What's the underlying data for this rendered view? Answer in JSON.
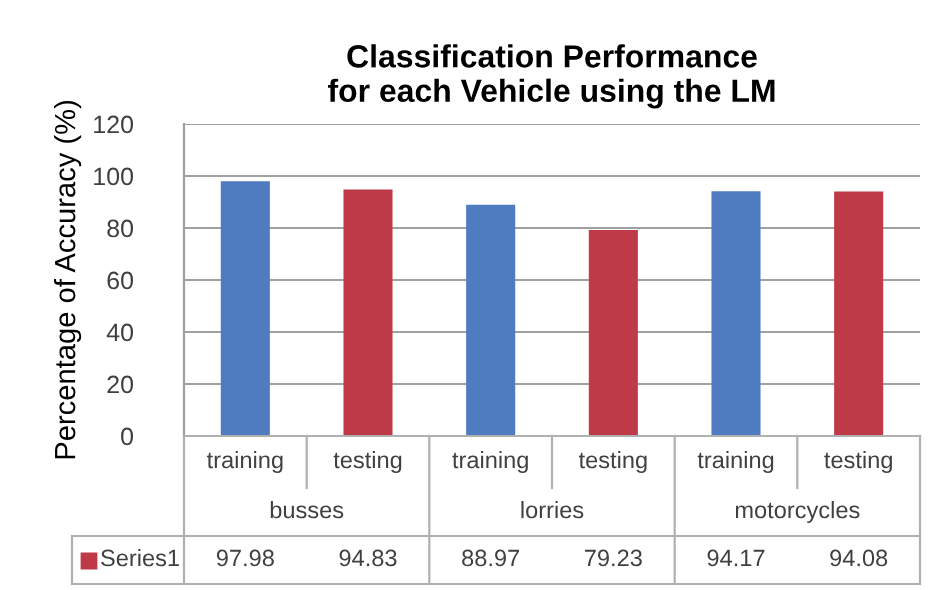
{
  "chart_data": {
    "type": "bar",
    "title": "Classification Performance\nfor each Vehicle using the LM",
    "ylabel": "Percentage of Accuracy (%)",
    "categories": [
      "training",
      "testing",
      "training",
      "testing",
      "training",
      "testing"
    ],
    "annotations": [
      "busses",
      "lorries",
      "motorcycles"
    ],
    "series": [
      {
        "name": "Series1",
        "color": "#be3a48",
        "colors": [
          "#4f7bc0",
          "#be3a48",
          "#4f7bc0",
          "#be3a48",
          "#4f7bc0",
          "#be3a48"
        ],
        "values": [
          97.98,
          94.83,
          88.97,
          79.23,
          94.17,
          94.08
        ]
      }
    ],
    "ylim": [
      0,
      120
    ],
    "yticks": [
      0,
      20,
      40,
      60,
      80,
      100,
      120
    ],
    "grid": "y",
    "data_labels": true
  }
}
